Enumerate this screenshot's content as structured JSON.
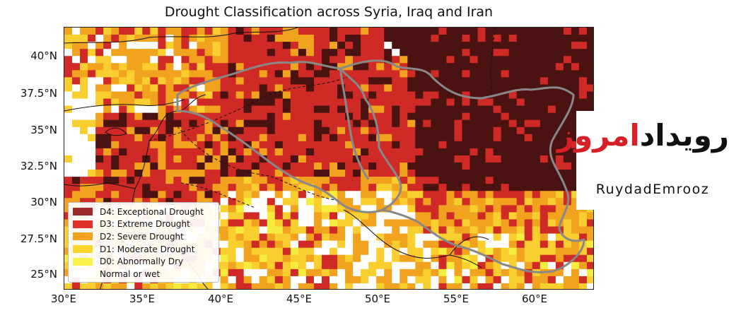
{
  "title": "Drought Classification across Syria, Iraq and Iran",
  "y_ticks": [
    "40°N",
    "37.5°N",
    "35°N",
    "32.5°N",
    "30°N",
    "27.5°N",
    "25°N"
  ],
  "x_ticks": [
    "30°E",
    "35°E",
    "40°E",
    "45°E",
    "50°E",
    "55°E",
    "60°E"
  ],
  "legend": [
    {
      "label": "D4: Exceptional Drought",
      "color": "#9e2a2b"
    },
    {
      "label": "D3: Extreme Drought",
      "color": "#e0312c"
    },
    {
      "label": "D2: Severe Drought",
      "color": "#f3a21f"
    },
    {
      "label": "D1: Moderate Drought",
      "color": "#fbd52b"
    },
    {
      "label": "D0: Abnormally Dry",
      "color": "#f9f24a"
    },
    {
      "label": "Normal or wet",
      "color": "#ffffff"
    }
  ],
  "logo": {
    "persian_part1": "رویداد",
    "persian_part2": "امروز",
    "latin": "RuydadEmrooz"
  },
  "map": {
    "lon_range": [
      30,
      64
    ],
    "lat_range": [
      23.5,
      42
    ],
    "colors": {
      "D4": "#4a1210",
      "D3": "#cf2a26",
      "D2": "#f1a320",
      "D1": "#f8cf2e",
      "D0": "#f5ec3e",
      "W": "#ffffff"
    }
  }
}
